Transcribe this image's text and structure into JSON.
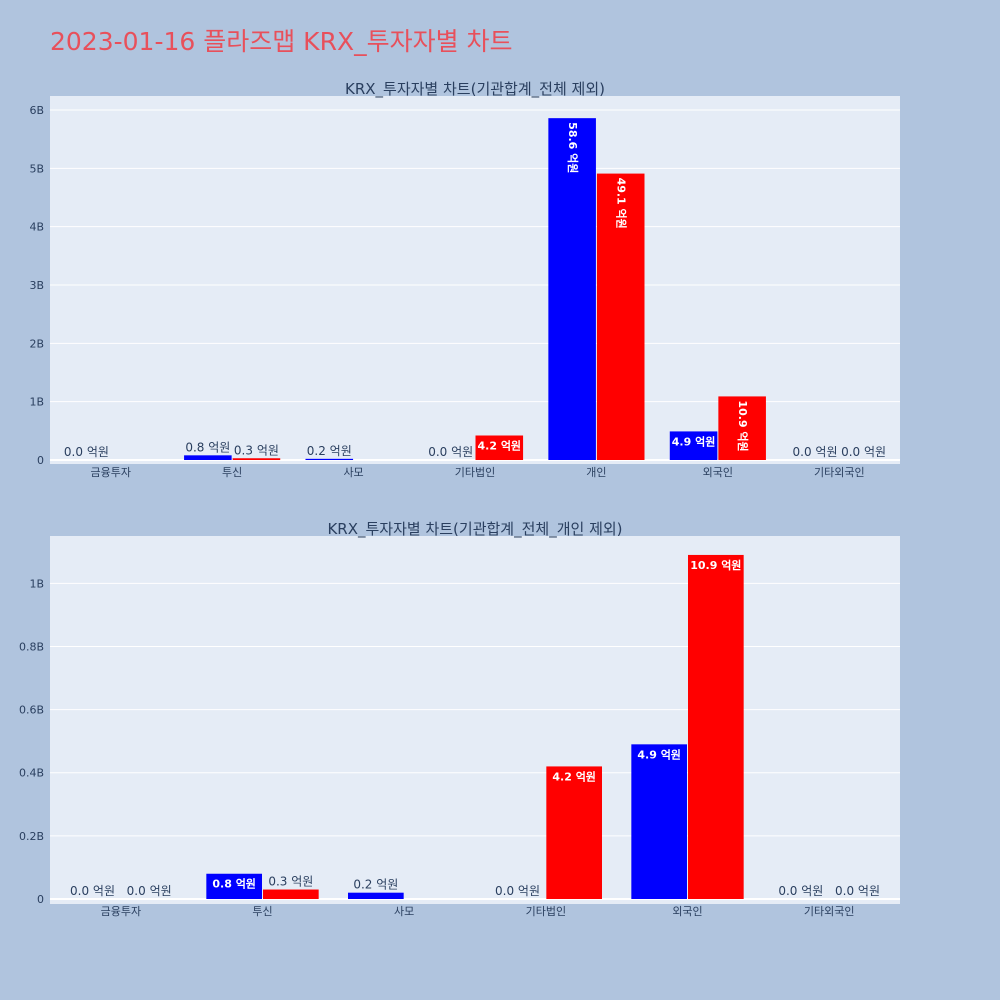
{
  "page": {
    "title": "2023-01-16 플라즈맵 KRX_투자자별 차트"
  },
  "colors": {
    "background": "#b0c4de",
    "plot": "#e5ecf6",
    "buy": "#0000ff",
    "sell": "#ff0000",
    "title": "#e8505b"
  },
  "chart_data": [
    {
      "type": "bar",
      "title": "KRX_투자자별 차트(기관합계_전체 제외)",
      "categories": [
        "금융투자",
        "투신",
        "사모",
        "기타법인",
        "개인",
        "외국인",
        "기타외국인"
      ],
      "yticks": [
        0,
        1000000000,
        2000000000,
        3000000000,
        4000000000,
        5000000000,
        6000000000
      ],
      "ytick_labels": [
        "0",
        "1B",
        "2B",
        "3B",
        "4B",
        "5B",
        "6B"
      ],
      "ylim": [
        0,
        6240000000
      ],
      "grid": true,
      "series": [
        {
          "color": "#0000ff",
          "values": [
            0,
            80000000,
            20000000,
            0,
            5860000000,
            490000000,
            0
          ],
          "labels": [
            "0.0 억원",
            "0.8 억원",
            "0.2 억원",
            "0.0 억원",
            "58.6 억원",
            "4.9 억원",
            "0.0 억원"
          ]
        },
        {
          "color": "#ff0000",
          "values": [
            0,
            30000000,
            0,
            420000000,
            4910000000,
            1090000000,
            0
          ],
          "labels": [
            "",
            "0.3 억원",
            "",
            "4.2 억원",
            "49.1 억원",
            "10.9 억원",
            "0.0 억원"
          ]
        }
      ]
    },
    {
      "type": "bar",
      "title": "KRX_투자자별 차트(기관합계_전체_개인 제외)",
      "categories": [
        "금융투자",
        "투신",
        "사모",
        "기타법인",
        "외국인",
        "기타외국인"
      ],
      "yticks": [
        0,
        200000000,
        400000000,
        600000000,
        800000000,
        1000000000
      ],
      "ytick_labels": [
        "0",
        "0.2B",
        "0.4B",
        "0.6B",
        "0.8B",
        "1B"
      ],
      "ylim": [
        0,
        1150000000
      ],
      "grid": true,
      "series": [
        {
          "color": "#0000ff",
          "values": [
            0,
            80000000,
            20000000,
            0,
            490000000,
            0
          ],
          "labels": [
            "0.0 억원",
            "0.8 억원",
            "0.2 억원",
            "0.0 억원",
            "4.9 억원",
            "0.0 억원"
          ]
        },
        {
          "color": "#ff0000",
          "values": [
            0,
            30000000,
            0,
            420000000,
            1090000000,
            0
          ],
          "labels": [
            "0.0 억원",
            "0.3 억원",
            "",
            "4.2 억원",
            "10.9 억원",
            "0.0 억원"
          ]
        }
      ]
    }
  ]
}
